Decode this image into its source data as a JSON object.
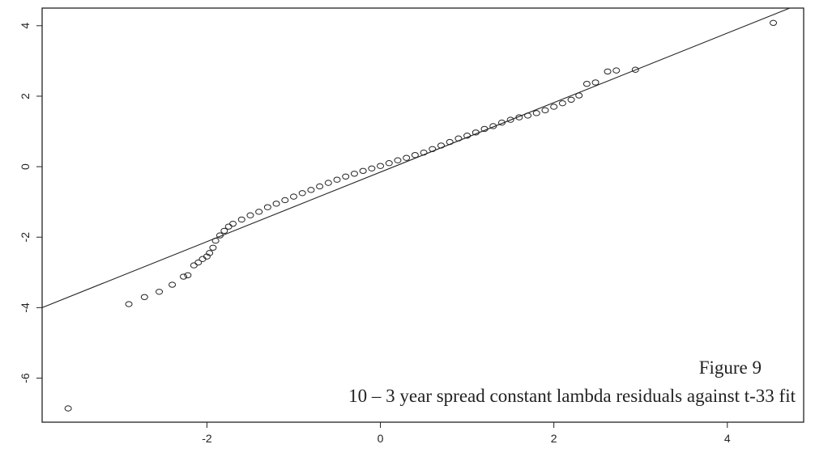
{
  "chart_data": {
    "type": "scatter",
    "annotations": [
      "Figure 9",
      "10 – 3 year spread constant lambda residuals against t-33 fit"
    ],
    "series": [
      {
        "color": "#222222",
        "x": [
          -3.6,
          -2.9,
          -2.72,
          -2.55,
          -2.4,
          -2.27,
          -2.22,
          -2.15,
          -2.1,
          -2.05,
          -2.0,
          -1.97,
          -1.93,
          -1.9,
          -1.85,
          -1.8,
          -1.75,
          -1.7,
          -1.6,
          -1.5,
          -1.4,
          -1.3,
          -1.2,
          -1.1,
          -1.0,
          -0.9,
          -0.8,
          -0.7,
          -0.6,
          -0.5,
          -0.4,
          -0.3,
          -0.2,
          -0.1,
          0,
          0.1,
          0.2,
          0.3,
          0.4,
          0.5,
          0.6,
          0.7,
          0.8,
          0.9,
          1.0,
          1.1,
          1.2,
          1.3,
          1.4,
          1.5,
          1.6,
          1.7,
          1.8,
          1.9,
          2.0,
          2.1,
          2.2,
          2.29,
          2.38,
          2.48,
          2.62,
          2.72,
          2.94,
          4.53
        ],
        "values": [
          -6.86,
          -3.9,
          -3.7,
          -3.55,
          -3.35,
          -3.12,
          -3.08,
          -2.8,
          -2.72,
          -2.62,
          -2.55,
          -2.45,
          -2.3,
          -2.1,
          -1.95,
          -1.82,
          -1.7,
          -1.62,
          -1.5,
          -1.38,
          -1.28,
          -1.15,
          -1.05,
          -0.95,
          -0.85,
          -0.75,
          -0.66,
          -0.56,
          -0.46,
          -0.37,
          -0.28,
          -0.2,
          -0.12,
          -0.05,
          0.02,
          0.1,
          0.18,
          0.25,
          0.33,
          0.4,
          0.5,
          0.6,
          0.7,
          0.8,
          0.88,
          0.97,
          1.07,
          1.15,
          1.25,
          1.33,
          1.4,
          1.45,
          1.52,
          1.6,
          1.7,
          1.8,
          1.9,
          2.02,
          2.35,
          2.39,
          2.7,
          2.73,
          2.75,
          4.08
        ]
      }
    ],
    "reference_line": {
      "x": [
        -3.9,
        4.72
      ],
      "values": [
        -4.0,
        4.5
      ],
      "color": "#222222"
    },
    "xlim": [
      -3.9,
      4.88
    ],
    "ylim": [
      -7.25,
      4.5
    ],
    "xticks": [
      -2,
      0,
      2,
      4
    ],
    "yticks": [
      -6,
      -4,
      -2,
      0,
      2,
      4
    ]
  }
}
